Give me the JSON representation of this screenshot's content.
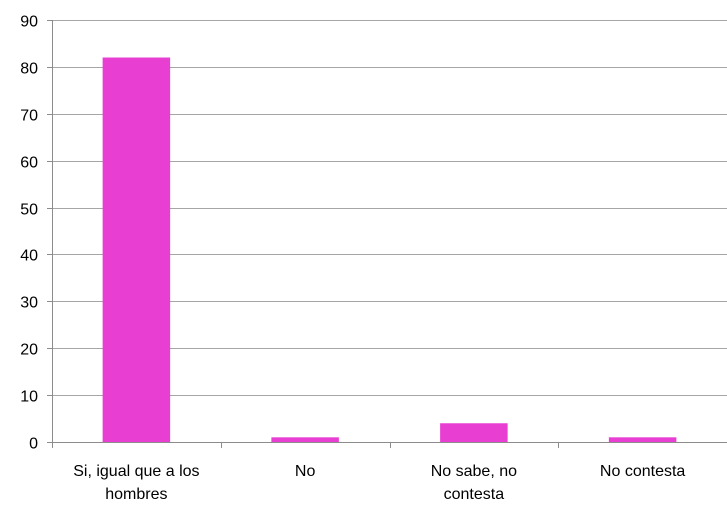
{
  "chart_data": {
    "type": "bar",
    "categories": [
      [
        "Si, igual que a los",
        "hombres"
      ],
      [
        "No"
      ],
      [
        "No sabe, no",
        "contesta"
      ],
      [
        "No contesta"
      ]
    ],
    "values": [
      82,
      1,
      4,
      1
    ],
    "ylim": [
      0,
      90
    ],
    "yticks": [
      "0",
      "10",
      "20",
      "30",
      "40",
      "50",
      "60",
      "70",
      "80",
      "90"
    ],
    "grid": true,
    "legend": "none",
    "bar_color": "#e83fd2",
    "grid_color": "#a6a6a6",
    "axis_color": "#8c8c8c"
  }
}
